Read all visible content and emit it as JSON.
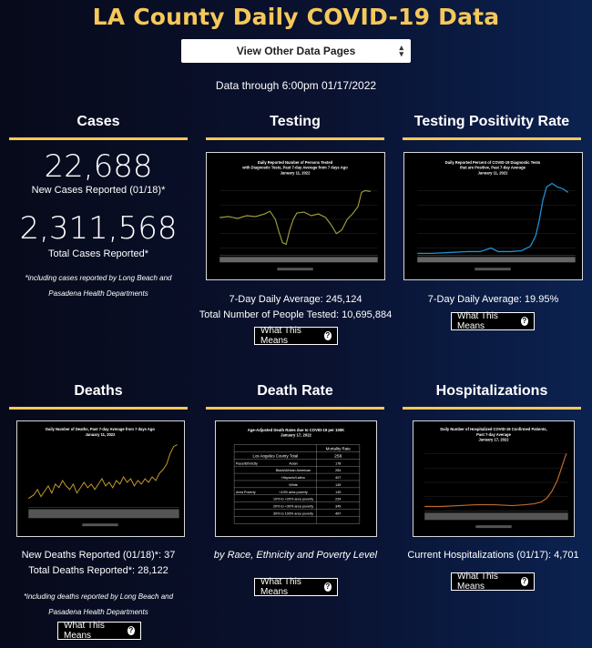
{
  "title": "LA County Daily COVID-19 Data",
  "select": {
    "label": "View Other Data Pages",
    "caret": "▲▼"
  },
  "data_through": "Data through 6:00pm 01/17/2022",
  "cases": {
    "title": "Cases",
    "new_cases": "22,688",
    "new_cases_label": "New Cases Reported (01/18)*",
    "total_cases": "2,311,568",
    "total_cases_label": "Total Cases Reported*",
    "note": "*including cases reported by Long Beach and Pasadena Health Departments"
  },
  "testing": {
    "title": "Testing",
    "chart_title": [
      "Daily Reported Number of Persons Tested",
      "with Diagnostic Tests, Past 7-day Average from 7 days Ago",
      "January 11, 2022"
    ],
    "avg": "7-Day Daily Average: 245,124",
    "total": "Total Number of People Tested: 10,695,884",
    "button": "What This Means"
  },
  "positivity": {
    "title": "Testing Positivity Rate",
    "chart_title": [
      "Daily Reported Percent of COVID-19 Diagnostic Tests",
      "that are Positive, Past 7-day Average",
      "January 11, 2022"
    ],
    "avg": "7-Day Daily Average: 19.95%",
    "button": "What This Means"
  },
  "deaths": {
    "title": "Deaths",
    "chart_title": [
      "Daily Number of Deaths, Past 7-day Average from 7 days Ago",
      "January 11, 2022"
    ],
    "new": "New Deaths Reported (01/18)*: 37",
    "total": "Total Deaths Reported*: 28,122",
    "note": "*including deaths reported by Long Beach and Pasadena Health Departments",
    "button": "What This Means"
  },
  "death_rate": {
    "title": "Death Rate",
    "chart_title": [
      "Age-Adjusted Death Rates due to COVID-19 per 100K",
      "January 17, 2022"
    ],
    "table_header": "Mortality Rate",
    "county_label": "Los Angeles County Total",
    "county_value": "256",
    "rows": [
      {
        "group": "Race/Ethnicity",
        "label": "Asian",
        "value": "178"
      },
      {
        "group": "",
        "label": "Black/African American",
        "value": "284"
      },
      {
        "group": "",
        "label": "Hispanic/Latino",
        "value": "407"
      },
      {
        "group": "",
        "label": "White",
        "value": "149"
      },
      {
        "group": "Area Poverty",
        "label": "<10% area poverty",
        "value": "149"
      },
      {
        "group": "",
        "label": "10% to <20% area poverty",
        "value": "234"
      },
      {
        "group": "",
        "label": "20% to <30% area poverty",
        "value": "349"
      },
      {
        "group": "",
        "label": "30% to 100% area poverty",
        "value": "467"
      }
    ],
    "caption": "by Race, Ethnicity and Poverty Level",
    "button": "What This Means"
  },
  "hosp": {
    "title": "Hospitalizations",
    "chart_title": [
      "Daily Number of Hospitalized COVID-19 Confirmed Patients,",
      "Past 7-day Average",
      "January 17, 2022"
    ],
    "current": "Current Hospitalizations (01/17): 4,701",
    "button": "What This Means"
  },
  "colors": {
    "accent": "#f5c85a",
    "testing_line": "#9c9a3a",
    "positivity_line": "#1f8fd6",
    "deaths_line": "#c49a2e",
    "hosp_line": "#c06a2a"
  }
}
